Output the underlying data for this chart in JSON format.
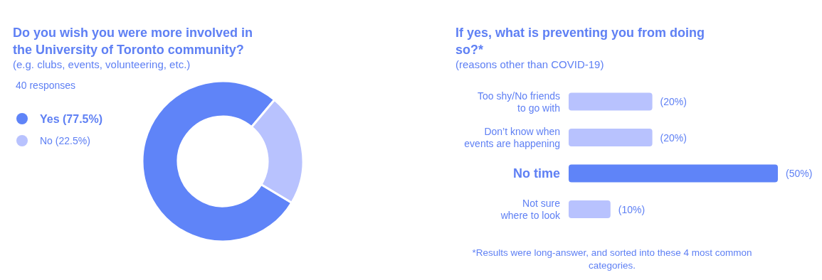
{
  "chart_data": [
    {
      "type": "donut",
      "title": "Do you wish you were more involved in the University of Toronto community?",
      "subtitle": "(e.g. clubs, events, volunteering, etc.)",
      "annotations": [
        "40 responses"
      ],
      "categories": [
        "Yes (77.5%)",
        "No (22.5%)"
      ],
      "values": [
        77.5,
        22.5
      ],
      "colors": [
        "#5f84f8",
        "#b8c2fe"
      ],
      "legend": "left"
    },
    {
      "type": "bar",
      "orientation": "horizontal",
      "title": "If yes, what is preventing you from doing so?*",
      "subtitle": "(reasons other than COVID-19)",
      "categories": [
        "Too shy/No friends\nto go with",
        "Don’t know when\nevents are happening",
        "No time",
        "Not sure\nwhere to look"
      ],
      "values": [
        20,
        20,
        50,
        10
      ],
      "colors": [
        "#b8c2fe",
        "#b8c2fe",
        "#5f84f8",
        "#b8c2fe"
      ],
      "value_labels": [
        "(20%)",
        "(20%)",
        "(50%)",
        "(10%)"
      ],
      "annotations": [
        "*Results were long-answer, and sorted into these 4 most common categories."
      ]
    }
  ]
}
